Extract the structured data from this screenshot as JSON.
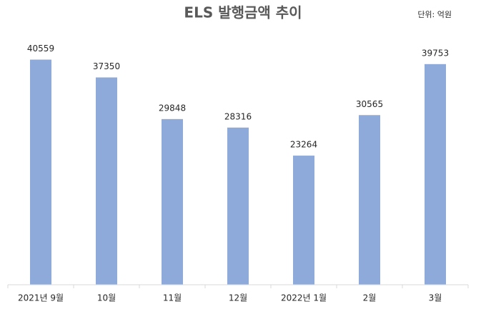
{
  "chart_data": {
    "type": "bar",
    "title": "ELS 발행금액 추이",
    "unit_label": "단위: 억원",
    "categories": [
      "2021년 9월",
      "10월",
      "11월",
      "12월",
      "2022년 1월",
      "2월",
      "3월"
    ],
    "values": [
      40559,
      37350,
      29848,
      28316,
      23264,
      30565,
      39753
    ],
    "color": "#8eaadb",
    "ylim": [
      0,
      45000
    ]
  }
}
